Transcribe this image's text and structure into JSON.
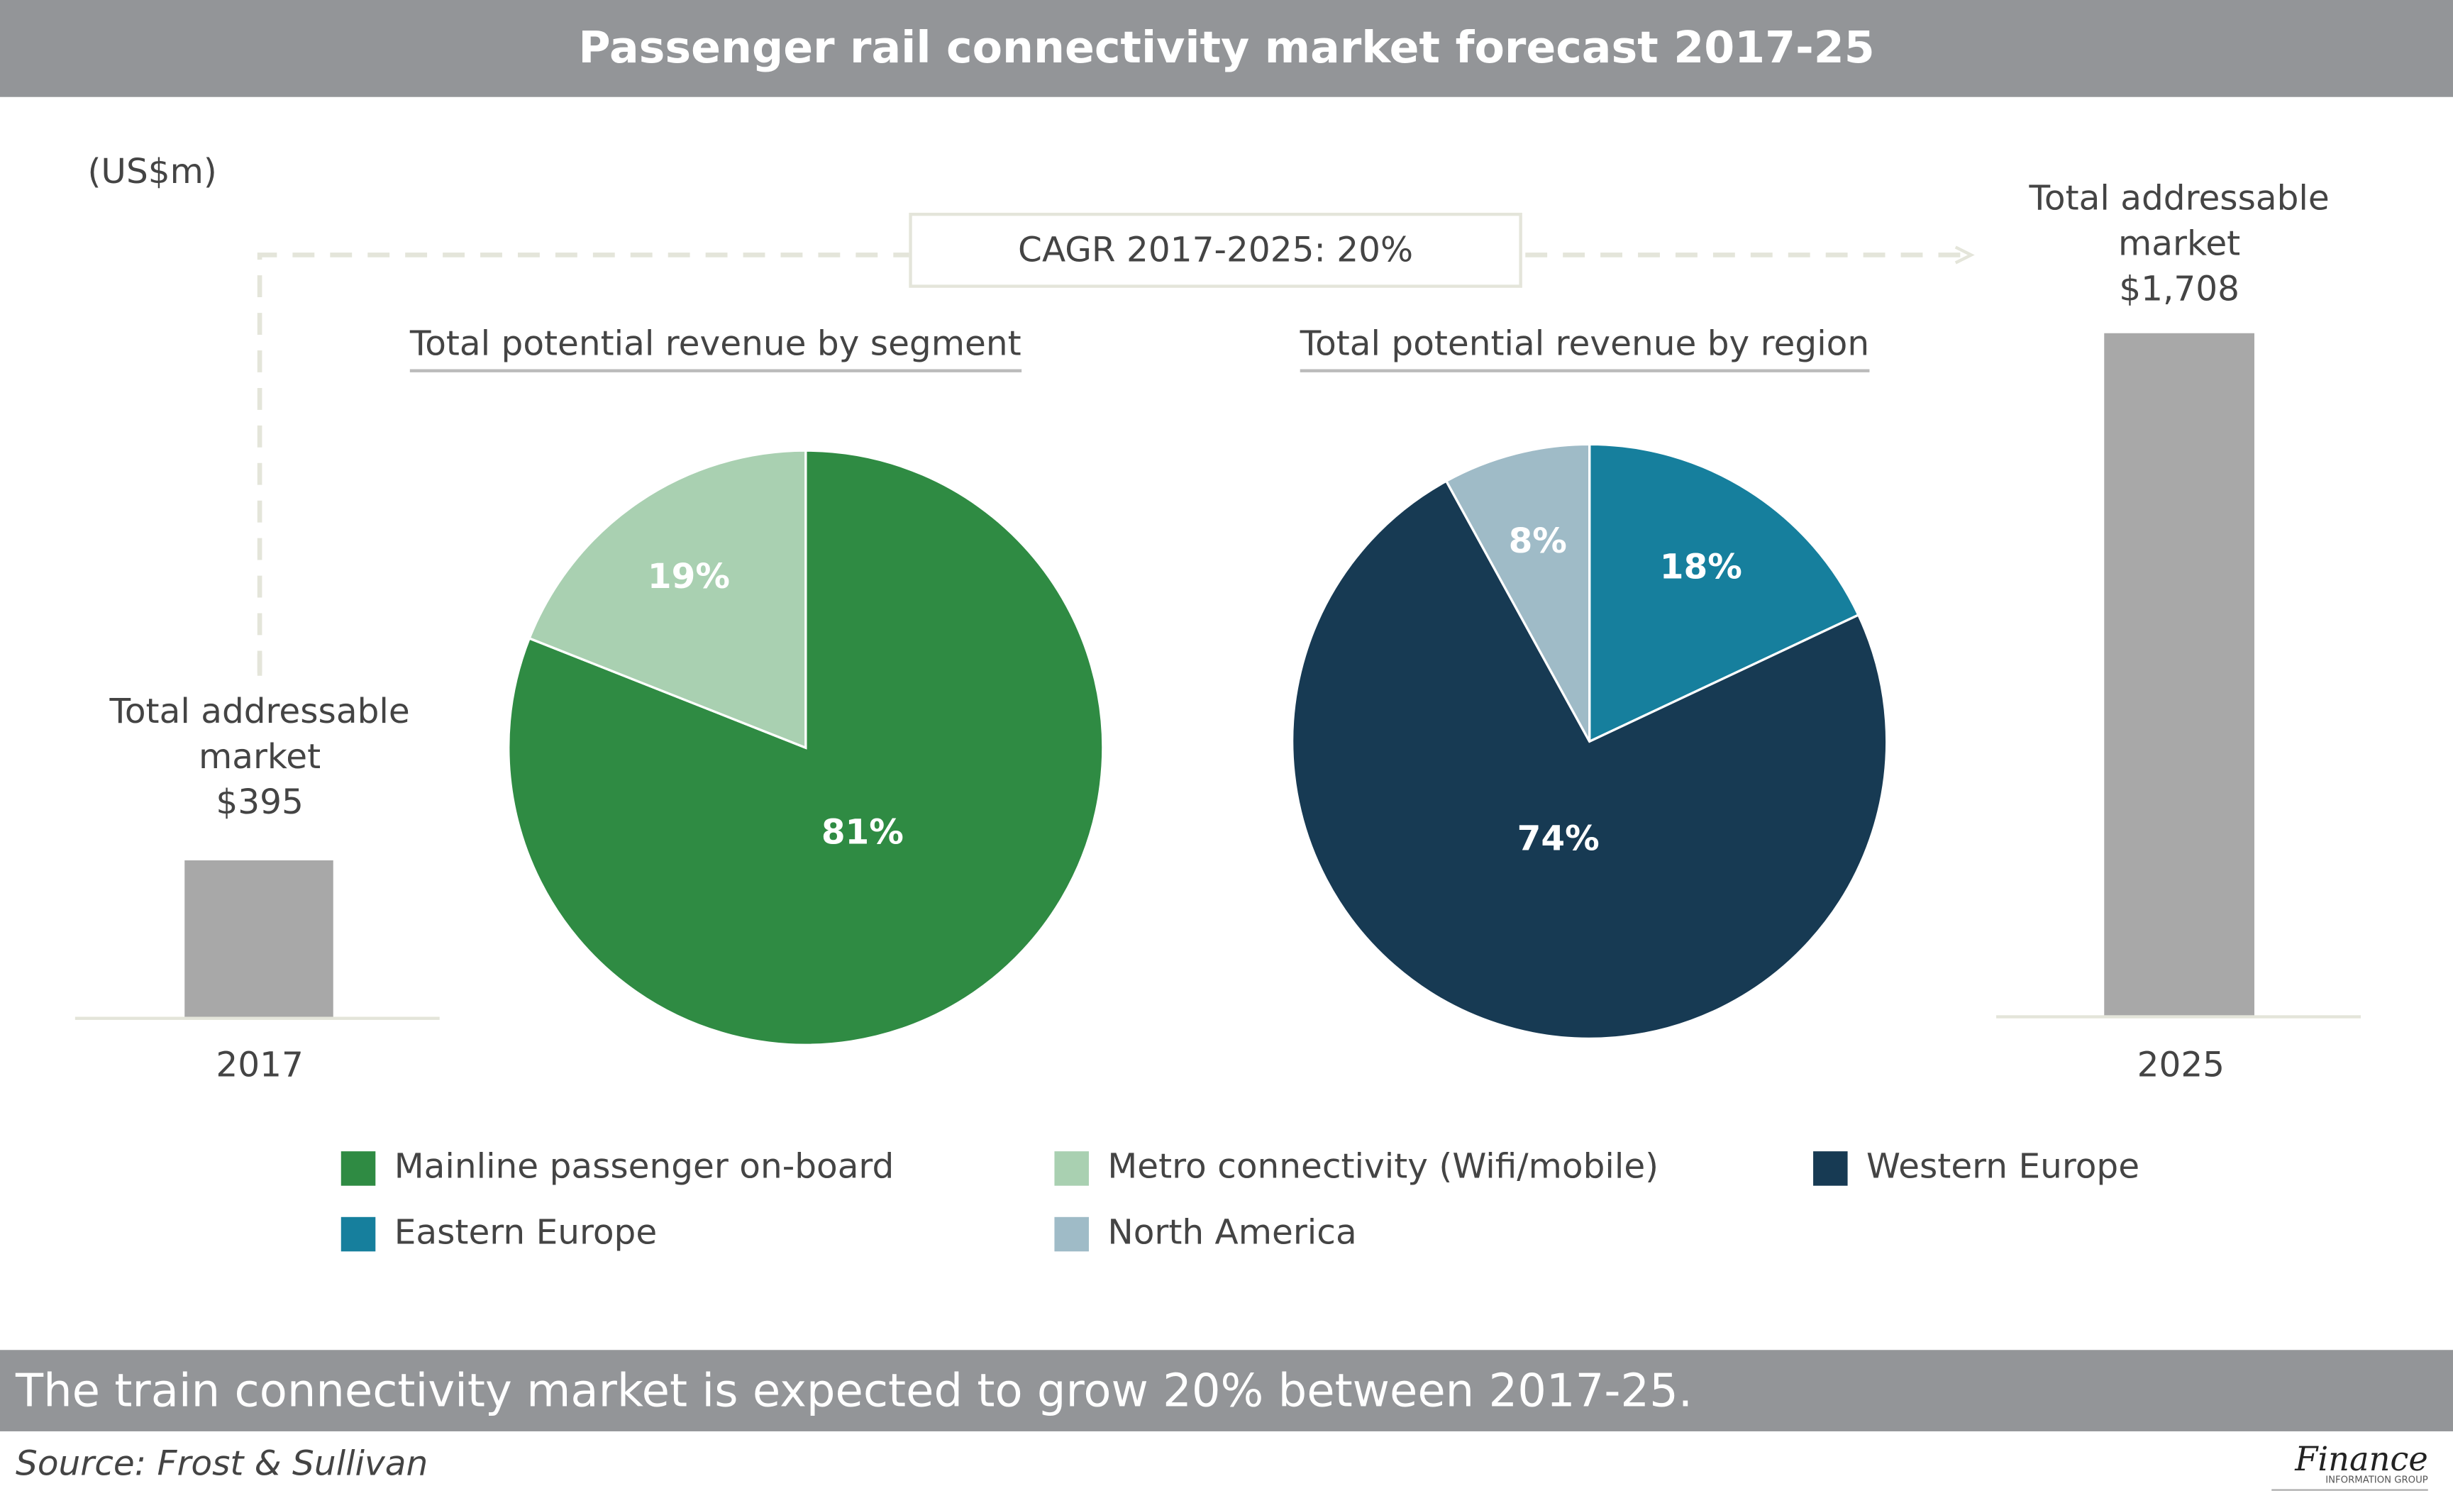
{
  "title": "Passenger rail connectivity market forecast 2017-25",
  "unit_label": "(US$m)",
  "cagr_label": "CAGR 2017-2025: 20%",
  "footer_text": "The train connectivity market is expected to grow 20% between 2017-25.",
  "source": "Source: Frost & Sullivan",
  "logo": {
    "main": "Finance",
    "sub": "INFORMATION GROUP"
  },
  "chart_data": [
    {
      "type": "bar",
      "categories": [
        "2017",
        "2025"
      ],
      "values": [
        395,
        1708
      ],
      "data_labels": [
        {
          "line1": "Total addressable",
          "line2": "market",
          "value": "$395"
        },
        {
          "line1": "Total addressable",
          "line2": "market",
          "value": "$1,708"
        }
      ],
      "ylabel": "(US$m)",
      "color": "#a8a8a8"
    },
    {
      "type": "pie",
      "title": "Total potential revenue by segment",
      "slices": [
        {
          "name": "Mainline passenger on-board",
          "value": 81,
          "label": "81%",
          "color": "#2f8b43"
        },
        {
          "name": "Metro connectivity (Wifi/mobile)",
          "value": 19,
          "label": "19%",
          "color": "#a9d0b1"
        }
      ]
    },
    {
      "type": "pie",
      "title": "Total potential revenue by region",
      "slices": [
        {
          "name": "Eastern Europe",
          "value": 18,
          "label": "18%",
          "color": "#167f9d"
        },
        {
          "name": "Western Europe",
          "value": 74,
          "label": "74%",
          "color": "#173a53"
        },
        {
          "name": "North America",
          "value": 8,
          "label": "8%",
          "color": "#9fbbc7"
        }
      ]
    }
  ],
  "legend": [
    {
      "label": "Mainline passenger on-board",
      "color": "#2f8b43"
    },
    {
      "label": "Metro connectivity (Wifi/mobile)",
      "color": "#a9d0b1"
    },
    {
      "label": "Western Europe",
      "color": "#173a53"
    },
    {
      "label": "Eastern Europe",
      "color": "#167f9d"
    },
    {
      "label": "North America",
      "color": "#9fbbc7"
    }
  ]
}
